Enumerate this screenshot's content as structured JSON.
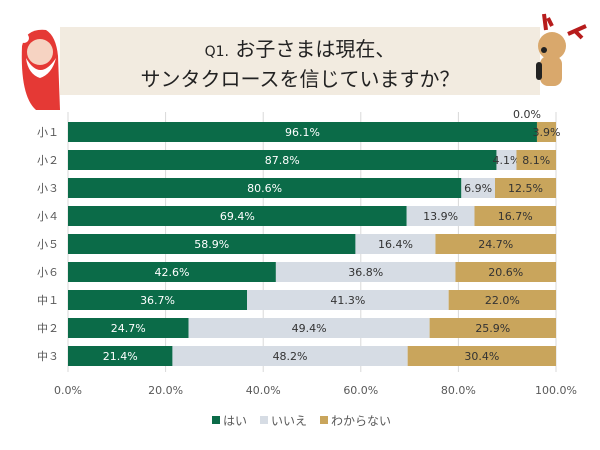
{
  "title": {
    "prefix": "Q1.",
    "line1": "お子さまは現在、",
    "line2": "サンタクロースを信じていますか？"
  },
  "chart_data": {
    "type": "bar",
    "orientation": "horizontal-stacked-100",
    "categories": [
      "小１",
      "小２",
      "小３",
      "小４",
      "小５",
      "小６",
      "中１",
      "中２",
      "中３"
    ],
    "series": [
      {
        "name": "はい",
        "color": "#0b6b48",
        "values": [
          96.1,
          87.8,
          80.6,
          69.4,
          58.9,
          42.6,
          36.7,
          24.7,
          21.4
        ],
        "labels": [
          "96.1%",
          "87.8%",
          "80.6%",
          "69.4%",
          "58.9%",
          "42.6%",
          "36.7%",
          "24.7%",
          "21.4%"
        ]
      },
      {
        "name": "いいえ",
        "color": "#d6dce4",
        "values": [
          0.0,
          4.1,
          6.9,
          13.9,
          16.4,
          36.8,
          41.3,
          49.4,
          48.2
        ],
        "labels": [
          "0.0%",
          "4.1%",
          "6.9%",
          "13.9%",
          "16.4%",
          "36.8%",
          "41.3%",
          "49.4%",
          "48.2%"
        ]
      },
      {
        "name": "わからない",
        "color": "#c9a55c",
        "values": [
          3.9,
          8.1,
          12.5,
          16.7,
          24.7,
          20.6,
          22.0,
          25.9,
          30.4
        ],
        "labels": [
          "3.9%",
          "8.1%",
          "12.5%",
          "16.7%",
          "24.7%",
          "20.6%",
          "22.0%",
          "25.9%",
          "30.4%"
        ]
      }
    ],
    "xlim": [
      0,
      100
    ],
    "xticks": [
      "0.0%",
      "20.0%",
      "40.0%",
      "60.0%",
      "80.0%",
      "100.0%"
    ],
    "grid": true,
    "legend": "bottom"
  }
}
